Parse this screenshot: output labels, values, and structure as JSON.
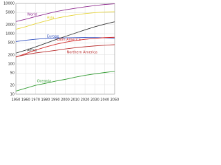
{
  "chart_data": {
    "type": "line",
    "x": [
      1950,
      1960,
      1970,
      1980,
      1990,
      2000,
      2010,
      2020,
      2030,
      2040,
      2050
    ],
    "series": [
      {
        "name": "World",
        "color": "#8e2a8e",
        "values": [
          2525,
          3018,
          3682,
          4440,
          5310,
          6127,
          6930,
          7700,
          8500,
          9200,
          9700
        ]
      },
      {
        "name": "Asia",
        "color": "#e6d43a",
        "values": [
          1400,
          1700,
          2140,
          2630,
          3200,
          3700,
          4170,
          4600,
          4950,
          5200,
          5300
        ]
      },
      {
        "name": "Europe",
        "color": "#2f4fbf",
        "values": [
          549,
          605,
          657,
          694,
          721,
          727,
          738,
          745,
          741,
          730,
          716
        ]
      },
      {
        "name": "Africa",
        "color": "#333333",
        "values": [
          228,
          285,
          366,
          478,
          630,
          811,
          1040,
          1340,
          1690,
          2080,
          2480
        ]
      },
      {
        "name": "Latin America",
        "color": "#d42a2a",
        "values": [
          168,
          220,
          287,
          362,
          443,
          522,
          591,
          650,
          700,
          740,
          760
        ]
      },
      {
        "name": "Northern America",
        "color": "#b82c2c",
        "values": [
          172,
          204,
          231,
          254,
          280,
          313,
          343,
          370,
          395,
          415,
          433
        ]
      },
      {
        "name": "Oceania",
        "color": "#2e9a2e",
        "values": [
          12.7,
          15.8,
          19.7,
          22.9,
          27,
          31,
          36.4,
          42,
          47,
          52,
          57
        ]
      }
    ],
    "xlim": [
      1950,
      2050
    ],
    "xticks": [
      1950,
      1960,
      1970,
      1980,
      1990,
      2000,
      2010,
      2020,
      2030,
      2040,
      2050
    ],
    "ylim": [
      10,
      10000
    ],
    "yticks": [
      10,
      20,
      50,
      100,
      200,
      500,
      1000,
      2000,
      5000,
      10000
    ],
    "log_y": true,
    "grid": true
  }
}
